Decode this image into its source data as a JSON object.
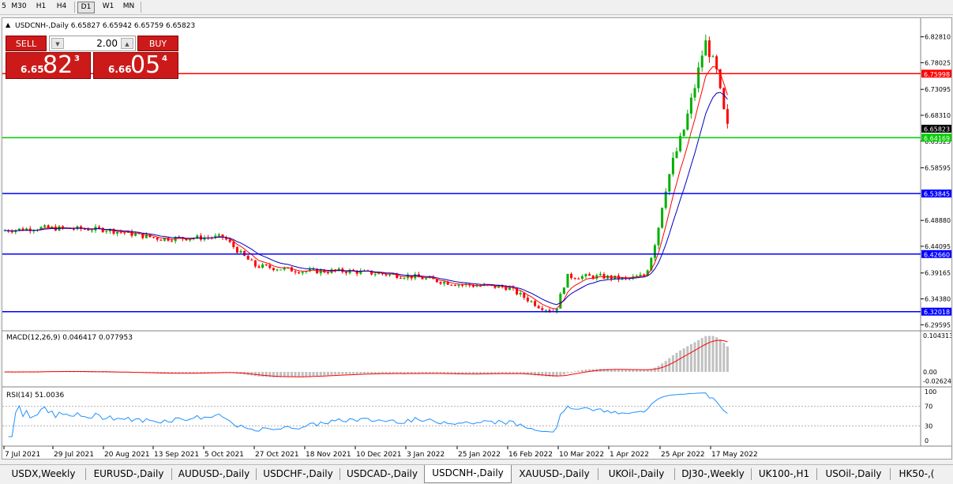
{
  "timeframes": {
    "items": [
      "5",
      "M30",
      "H1",
      "H4",
      "D1",
      "W1",
      "MN"
    ],
    "active": "D1"
  },
  "chart": {
    "title_arrow": "▲",
    "title": "USDCNH-,Daily  6.65827 6.65942 6.65759 6.65823",
    "price_axis": [
      "6.82810",
      "6.78025",
      "6.73095",
      "6.68310",
      "6.63525",
      "6.58595",
      "6.48880",
      "6.44095",
      "6.39165",
      "6.34380",
      "6.29595"
    ],
    "current_price": "6.65823",
    "levels": [
      {
        "price": "6.75998",
        "color": "#ff0000"
      },
      {
        "price": "6.64169",
        "color": "#00cc00"
      },
      {
        "price": "6.53845",
        "color": "#0000ff"
      },
      {
        "price": "6.42660",
        "color": "#0000ff"
      },
      {
        "price": "6.32018",
        "color": "#0000ff"
      }
    ],
    "date_axis": [
      "7 Jul 2021",
      "29 Jul 2021",
      "20 Aug 2021",
      "13 Sep 2021",
      "5 Oct 2021",
      "27 Oct 2021",
      "18 Nov 2021",
      "10 Dec 2021",
      "3 Jan 2022",
      "25 Jan 2022",
      "16 Feb 2022",
      "10 Mar 2022",
      "1 Apr 2022",
      "25 Apr 2022",
      "17 May 2022"
    ],
    "bull_color": "#00b000",
    "bear_color": "#ff0000",
    "ma_fast_color": "#ff0000",
    "ma_slow_color": "#0000c0"
  },
  "macd": {
    "label": "MACD(12,26,9) 0.046417 0.077953",
    "axis": [
      "0.104313",
      "0.00",
      "-0.026249"
    ],
    "hist_color": "#c0c0c0",
    "signal_color": "#ff0000"
  },
  "rsi": {
    "label": "RSI(14) 51.0036",
    "axis": [
      "100",
      "70",
      "30",
      "0"
    ],
    "line_color": "#1e90ff"
  },
  "trade_panel": {
    "sell_label": "SELL",
    "buy_label": "BUY",
    "lot": "2.00",
    "sell_price": {
      "small": "6.65",
      "big": "82",
      "sup": "3"
    },
    "buy_price": {
      "small": "6.66",
      "big": "05",
      "sup": "4"
    }
  },
  "tabs": {
    "items": [
      "USDX,Weekly",
      "EURUSD-,Daily",
      "AUDUSD-,Daily",
      "USDCHF-,Daily",
      "USDCAD-,Daily",
      "USDCNH-,Daily",
      "XAUUSD-,Daily",
      "UKOil-,Daily",
      "DJ30-,Weekly",
      "UK100-,H1",
      "USOil-,Daily",
      "HK50-,("
    ],
    "active": "USDCNH-,Daily"
  }
}
